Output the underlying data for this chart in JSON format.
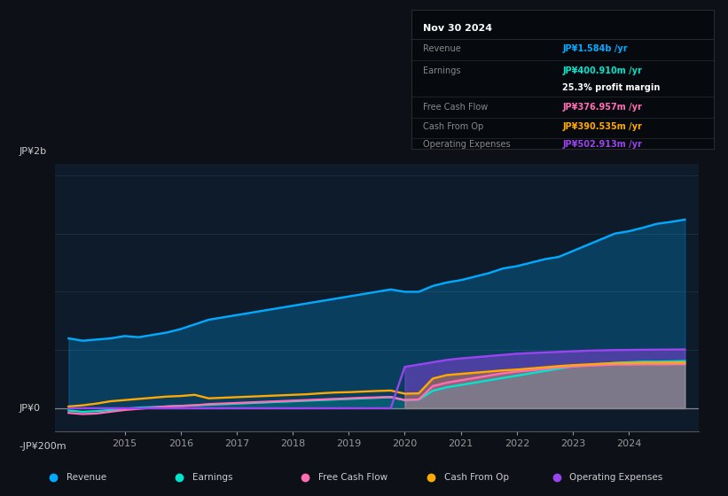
{
  "bg_color": "#0d1117",
  "chart_bg": "#0d1b2a",
  "y_label_top": "JP¥2b",
  "y_label_mid": "JP¥0",
  "y_label_bot": "-JP¥200m",
  "x_ticks": [
    2015,
    2016,
    2017,
    2018,
    2019,
    2020,
    2021,
    2022,
    2023,
    2024
  ],
  "ylim": [
    -200,
    2100
  ],
  "xlim": [
    2013.75,
    2025.25
  ],
  "revenue_color": "#00aaff",
  "earnings_color": "#00e5cc",
  "fcf_color": "#ff6eb4",
  "cashfromop_color": "#ffaa00",
  "opex_color": "#9944ee",
  "info_box": {
    "date": "Nov 30 2024",
    "revenue_val": "JP¥1.584b",
    "revenue_color": "#00aaff",
    "earnings_val": "JP¥400.910m",
    "earnings_color": "#00e5cc",
    "profit_margin": "25.3% profit margin",
    "fcf_val": "JP¥376.957m",
    "fcf_color": "#ff6eb4",
    "cashfromop_val": "JP¥390.535m",
    "cashfromop_color": "#ffaa00",
    "opex_val": "JP¥502.913m",
    "opex_color": "#9944ee"
  },
  "legend_items": [
    {
      "label": "Revenue",
      "color": "#00aaff"
    },
    {
      "label": "Earnings",
      "color": "#00e5cc"
    },
    {
      "label": "Free Cash Flow",
      "color": "#ff6eb4"
    },
    {
      "label": "Cash From Op",
      "color": "#ffaa00"
    },
    {
      "label": "Operating Expenses",
      "color": "#9944ee"
    }
  ]
}
